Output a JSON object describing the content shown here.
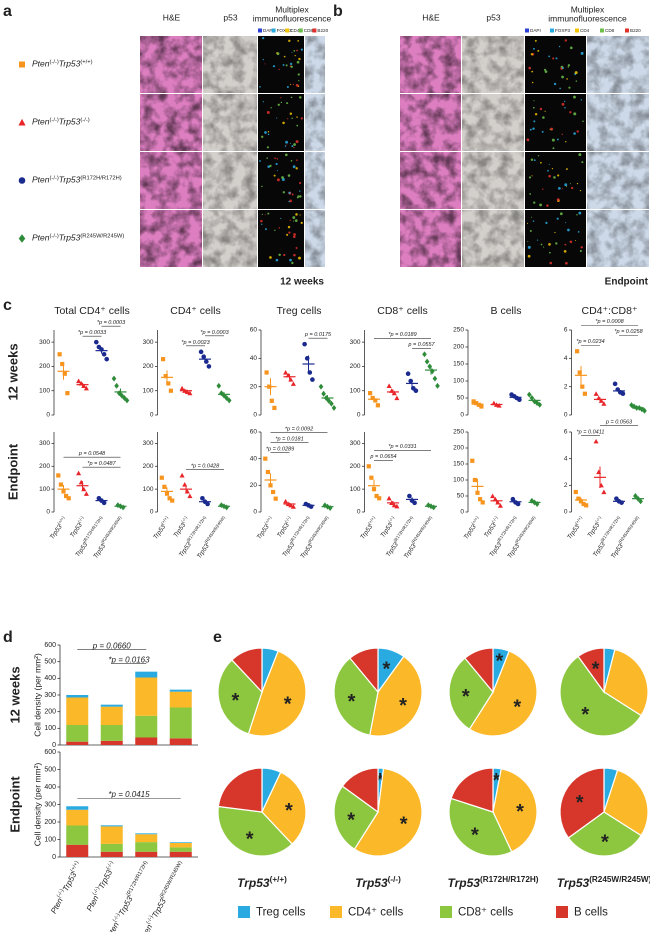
{
  "figure": {
    "panel_labels": {
      "a": "a",
      "b": "b",
      "c": "c",
      "d": "d",
      "e": "e"
    },
    "image_columns": [
      "H&E",
      "p53"
    ],
    "mif_title": [
      "Multiplex",
      "immunofluorescence"
    ],
    "mif_channels": [
      {
        "name": "DAPI",
        "color": "#2b3fd6"
      },
      {
        "name": "FOXP3",
        "color": "#29abe2"
      },
      {
        "name": "CD4",
        "color": "#f5c400"
      },
      {
        "name": "CD8",
        "color": "#6cc04a"
      },
      {
        "name": "B220",
        "color": "#e0312b"
      }
    ],
    "timepoints": [
      "12 weeks",
      "Endpoint"
    ],
    "groups": [
      {
        "label": {
          "pten": "Pten",
          "pten_sup": "(-/-)",
          "trp53": "Trp53",
          "trp53_sup": "(+/+)"
        },
        "color": "#f7941d",
        "marker": "square"
      },
      {
        "label": {
          "pten": "Pten",
          "pten_sup": "(-/-)",
          "trp53": "Trp53",
          "trp53_sup": "(-/-)"
        },
        "color": "#e8262a",
        "marker": "triangle"
      },
      {
        "label": {
          "pten": "Pten",
          "pten_sup": "(-/-)",
          "trp53": "Trp53",
          "trp53_sup": "(R172H/R172H)"
        },
        "color": "#1b2a8f",
        "marker": "circle"
      },
      {
        "label": {
          "pten": "Pten",
          "pten_sup": "(-/-)",
          "trp53": "Trp53",
          "trp53_sup": "(R245W/R245W)"
        },
        "color": "#2e8b3a",
        "marker": "diamond"
      }
    ],
    "cell_types": [
      {
        "name": "Treg cells",
        "color": "#29abe2"
      },
      {
        "name": "CD4⁺ cells",
        "color": "#fbb829"
      },
      {
        "name": "CD8⁺ cells",
        "color": "#8dc63f"
      },
      {
        "name": "B cells",
        "color": "#d7372b"
      }
    ],
    "y_label": "Cell density (per mm²)"
  },
  "chart_data": [
    {
      "type": "dot",
      "title": "Total CD4⁺ cells",
      "ylim": [
        0,
        350
      ],
      "yticks": [
        0,
        100,
        200,
        300
      ],
      "groups": [
        {
          "values": [
            250,
            210,
            170,
            90
          ],
          "mean": 180,
          "sem": 35
        },
        {
          "values": [
            140,
            130,
            120,
            110
          ],
          "mean": 125,
          "sem": 8
        },
        {
          "values": [
            300,
            280,
            270,
            250,
            230
          ],
          "mean": 265,
          "sem": 12
        },
        {
          "values": [
            150,
            120,
            90,
            80,
            70,
            60
          ],
          "mean": 95,
          "sem": 14
        }
      ],
      "annotations": [
        {
          "text": "*p = 0.0033",
          "span": [
            1,
            2
          ]
        },
        {
          "text": "*p = 0.0003",
          "span": [
            2,
            3
          ]
        }
      ]
    },
    {
      "type": "dot",
      "title": "CD4⁺ cells",
      "ylim": [
        0,
        350
      ],
      "yticks": [
        0,
        100,
        200,
        300
      ],
      "groups": [
        {
          "values": [
            230,
            160,
            130,
            100
          ],
          "mean": 155,
          "sem": 28
        },
        {
          "values": [
            110,
            100,
            95,
            90
          ],
          "mean": 100,
          "sem": 5
        },
        {
          "values": [
            260,
            240,
            220,
            200
          ],
          "mean": 230,
          "sem": 13
        },
        {
          "values": [
            120,
            90,
            80,
            70,
            60
          ],
          "mean": 85,
          "sem": 10
        }
      ],
      "annotations": [
        {
          "text": "*p = 0.0023",
          "span": [
            1,
            2
          ]
        },
        {
          "text": "*p = 0.0003",
          "span": [
            2,
            3
          ]
        }
      ]
    },
    {
      "type": "dot",
      "title": "Treg cells",
      "ylim": [
        0,
        60
      ],
      "yticks": [
        0,
        20,
        40,
        60
      ],
      "groups": [
        {
          "values": [
            30,
            20,
            10,
            5
          ],
          "mean": 20,
          "sem": 6
        },
        {
          "values": [
            30,
            28,
            25,
            22
          ],
          "mean": 27,
          "sem": 2
        },
        {
          "values": [
            50,
            40,
            30,
            25
          ],
          "mean": 36,
          "sem": 6
        },
        {
          "values": [
            20,
            15,
            12,
            10,
            8,
            5
          ],
          "mean": 12,
          "sem": 2
        }
      ],
      "annotations": [
        {
          "text": "p = 0.0175",
          "span": [
            2,
            3
          ]
        }
      ]
    },
    {
      "type": "dot",
      "title": "CD8⁺ cells",
      "ylim": [
        0,
        350
      ],
      "yticks": [
        0,
        100,
        200,
        300
      ],
      "groups": [
        {
          "values": [
            90,
            70,
            60,
            40
          ],
          "mean": 65,
          "sem": 10
        },
        {
          "values": [
            120,
            100,
            90,
            70
          ],
          "mean": 95,
          "sem": 10
        },
        {
          "values": [
            170,
            140,
            110,
            100
          ],
          "mean": 130,
          "sem": 16
        },
        {
          "values": [
            250,
            220,
            200,
            180,
            150,
            120
          ],
          "mean": 185,
          "sem": 19
        }
      ],
      "annotations": [
        {
          "text": "p = 0.0557",
          "span": [
            2,
            3
          ]
        },
        {
          "text": "*p = 0.0189",
          "span": [
            0,
            3
          ]
        }
      ]
    },
    {
      "type": "dot",
      "title": "B cells",
      "ylim": [
        0,
        250
      ],
      "yticks": [
        0,
        50,
        100,
        150,
        200,
        250
      ],
      "groups": [
        {
          "values": [
            40,
            35,
            30,
            25
          ],
          "mean": 32,
          "sem": 3
        },
        {
          "values": [
            35,
            30,
            28
          ],
          "mean": 31,
          "sem": 2
        },
        {
          "values": [
            60,
            55,
            50,
            45
          ],
          "mean": 52,
          "sem": 3
        },
        {
          "values": [
            60,
            50,
            40,
            35,
            30
          ],
          "mean": 43,
          "sem": 5
        }
      ],
      "annotations": []
    },
    {
      "type": "dot",
      "title": "CD4⁺:CD8⁺",
      "ylim": [
        0,
        6
      ],
      "yticks": [
        0,
        2,
        4,
        6
      ],
      "groups": [
        {
          "values": [
            4.5,
            3,
            2,
            1.5
          ],
          "mean": 2.8,
          "sem": 0.65
        },
        {
          "values": [
            1.5,
            1.2,
            1,
            0.8
          ],
          "mean": 1.1,
          "sem": 0.15
        },
        {
          "values": [
            2.2,
            1.8,
            1.6,
            1.5
          ],
          "mean": 1.7,
          "sem": 0.15
        },
        {
          "values": [
            0.7,
            0.6,
            0.5,
            0.5,
            0.4,
            0.3
          ],
          "mean": 0.5,
          "sem": 0.06
        }
      ],
      "annotations": [
        {
          "text": "*p = 0.0234",
          "span": [
            0,
            1
          ]
        },
        {
          "text": "*p = 0.0258",
          "span": [
            2,
            3
          ]
        },
        {
          "text": "*p = 0.0008",
          "span": [
            0,
            3
          ]
        }
      ]
    },
    {
      "type": "dot",
      "ylim": [
        0,
        350
      ],
      "yticks": [
        0,
        100,
        200,
        300
      ],
      "groups": [
        {
          "values": [
            160,
            120,
            90,
            70,
            60
          ],
          "mean": 100,
          "sem": 18
        },
        {
          "values": [
            170,
            130,
            100,
            80
          ],
          "mean": 115,
          "sem": 20
        },
        {
          "values": [
            60,
            50,
            40
          ],
          "mean": 50,
          "sem": 6
        },
        {
          "values": [
            30,
            25,
            20
          ],
          "mean": 25,
          "sem": 3
        }
      ],
      "annotations": [
        {
          "text": "*p = 0.0487",
          "span": [
            1,
            3
          ]
        },
        {
          "text": "p = 0.0548",
          "span": [
            0,
            3
          ]
        }
      ]
    },
    {
      "type": "dot",
      "ylim": [
        0,
        350
      ],
      "yticks": [
        0,
        100,
        200,
        300
      ],
      "groups": [
        {
          "values": [
            150,
            110,
            80,
            60,
            50
          ],
          "mean": 90,
          "sem": 18
        },
        {
          "values": [
            160,
            120,
            90,
            70
          ],
          "mean": 100,
          "sem": 19
        },
        {
          "values": [
            60,
            45,
            35
          ],
          "mean": 45,
          "sem": 7
        },
        {
          "values": [
            30,
            25,
            20
          ],
          "mean": 25,
          "sem": 3
        }
      ],
      "annotations": [
        {
          "text": "*p = 0.0428",
          "span": [
            1,
            3
          ]
        }
      ]
    },
    {
      "type": "dot",
      "ylim": [
        0,
        60
      ],
      "yticks": [
        0,
        20,
        40,
        60
      ],
      "groups": [
        {
          "values": [
            40,
            30,
            20,
            15,
            10
          ],
          "mean": 24,
          "sem": 5
        },
        {
          "values": [
            8,
            6,
            5,
            4
          ],
          "mean": 6,
          "sem": 1
        },
        {
          "values": [
            6,
            5,
            4
          ],
          "mean": 5,
          "sem": 0.6
        },
        {
          "values": [
            5,
            4,
            3
          ],
          "mean": 4,
          "sem": 0.6
        }
      ],
      "annotations": [
        {
          "text": "*p = 0.0289",
          "span": [
            0,
            1
          ]
        },
        {
          "text": "*p = 0.0181",
          "span": [
            0,
            2
          ]
        },
        {
          "text": "*p = 0.0092",
          "span": [
            0,
            3
          ]
        }
      ]
    },
    {
      "type": "dot",
      "ylim": [
        0,
        350
      ],
      "yticks": [
        0,
        100,
        200,
        300
      ],
      "groups": [
        {
          "values": [
            200,
            150,
            100,
            70,
            60
          ],
          "mean": 115,
          "sem": 26
        },
        {
          "values": [
            60,
            40,
            30,
            25
          ],
          "mean": 40,
          "sem": 8
        },
        {
          "values": [
            70,
            50,
            40
          ],
          "mean": 55,
          "sem": 9
        },
        {
          "values": [
            30,
            25,
            20
          ],
          "mean": 25,
          "sem": 3
        }
      ],
      "annotations": [
        {
          "text": "p = 0.0654",
          "span": [
            0,
            1
          ]
        },
        {
          "text": "*p = 0.0331",
          "span": [
            0,
            3
          ]
        }
      ]
    },
    {
      "type": "dot",
      "ylim": [
        0,
        250
      ],
      "yticks": [
        0,
        50,
        100,
        150,
        200,
        250
      ],
      "groups": [
        {
          "values": [
            160,
            100,
            60,
            40,
            30
          ],
          "mean": 80,
          "sem": 24
        },
        {
          "values": [
            50,
            40,
            30,
            20
          ],
          "mean": 35,
          "sem": 6
        },
        {
          "values": [
            40,
            30,
            25
          ],
          "mean": 32,
          "sem": 4
        },
        {
          "values": [
            35,
            30,
            25
          ],
          "mean": 30,
          "sem": 3
        }
      ],
      "annotations": []
    },
    {
      "type": "dot",
      "ylim": [
        0,
        6
      ],
      "yticks": [
        0,
        2,
        4,
        6
      ],
      "groups": [
        {
          "values": [
            1.5,
            1,
            0.8,
            0.6,
            0.5
          ],
          "mean": 0.9,
          "sem": 0.18
        },
        {
          "values": [
            5.3,
            3,
            2,
            1.5
          ],
          "mean": 2.6,
          "sem": 0.8
        },
        {
          "values": [
            1,
            0.8,
            0.7
          ],
          "mean": 0.8,
          "sem": 0.09
        },
        {
          "values": [
            1.2,
            1,
            0.8
          ],
          "mean": 1,
          "sem": 0.12
        }
      ],
      "annotations": [
        {
          "text": "*p = 0.0411",
          "span": [
            0,
            1
          ]
        },
        {
          "text": "p = 0.0563",
          "span": [
            1,
            3
          ]
        }
      ]
    },
    {
      "type": "stacked_bar",
      "ylim": [
        0,
        600
      ],
      "yticks": [
        0,
        100,
        200,
        300,
        400,
        500,
        600
      ],
      "series": [
        {
          "values": [
            15,
            12,
            35,
            12
          ]
        },
        {
          "values": [
            165,
            110,
            230,
            95
          ]
        },
        {
          "values": [
            100,
            95,
            130,
            185
          ]
        },
        {
          "values": [
            20,
            25,
            45,
            40
          ]
        }
      ],
      "annotations": [
        {
          "text": "*p = 0.0163",
          "span": [
            1,
            2
          ]
        },
        {
          "text": "p = 0.0660",
          "span": [
            0,
            2
          ]
        }
      ]
    },
    {
      "type": "stacked_bar",
      "ylim": [
        0,
        600
      ],
      "yticks": [
        0,
        100,
        200,
        300,
        400,
        500,
        600
      ],
      "series": [
        {
          "values": [
            20,
            6,
            5,
            4
          ]
        },
        {
          "values": [
            90,
            100,
            45,
            25
          ]
        },
        {
          "values": [
            110,
            45,
            55,
            25
          ]
        },
        {
          "values": [
            70,
            30,
            30,
            30
          ]
        }
      ],
      "annotations": [
        {
          "text": "*p = 0.0415",
          "span": [
            0,
            3
          ]
        }
      ]
    },
    {
      "type": "pie",
      "values": [
        6,
        49,
        33,
        12
      ],
      "asterisks": [
        null,
        "*",
        "*",
        null
      ]
    },
    {
      "type": "pie",
      "values": [
        10,
        43,
        36,
        11
      ],
      "asterisks": [
        "*",
        "*",
        "*",
        null
      ]
    },
    {
      "type": "pie",
      "values": [
        6,
        53,
        30,
        11
      ],
      "asterisks": [
        "*",
        "*",
        "*",
        null
      ]
    },
    {
      "type": "pie",
      "values": [
        4,
        30,
        56,
        10
      ],
      "asterisks": [
        null,
        null,
        "*",
        "*"
      ]
    },
    {
      "type": "pie",
      "values": [
        7,
        31,
        39,
        23
      ],
      "asterisks": [
        null,
        "*",
        "*",
        null
      ]
    },
    {
      "type": "pie",
      "values": [
        2,
        57,
        26,
        15
      ],
      "asterisks": [
        "*",
        "*",
        "*",
        null
      ]
    },
    {
      "type": "pie",
      "values": [
        3,
        40,
        37,
        20
      ],
      "asterisks": [
        "*",
        "*",
        "*",
        null
      ]
    },
    {
      "type": "pie",
      "values": [
        5,
        29,
        31,
        35
      ],
      "asterisks": [
        null,
        null,
        "*",
        "*"
      ]
    }
  ]
}
